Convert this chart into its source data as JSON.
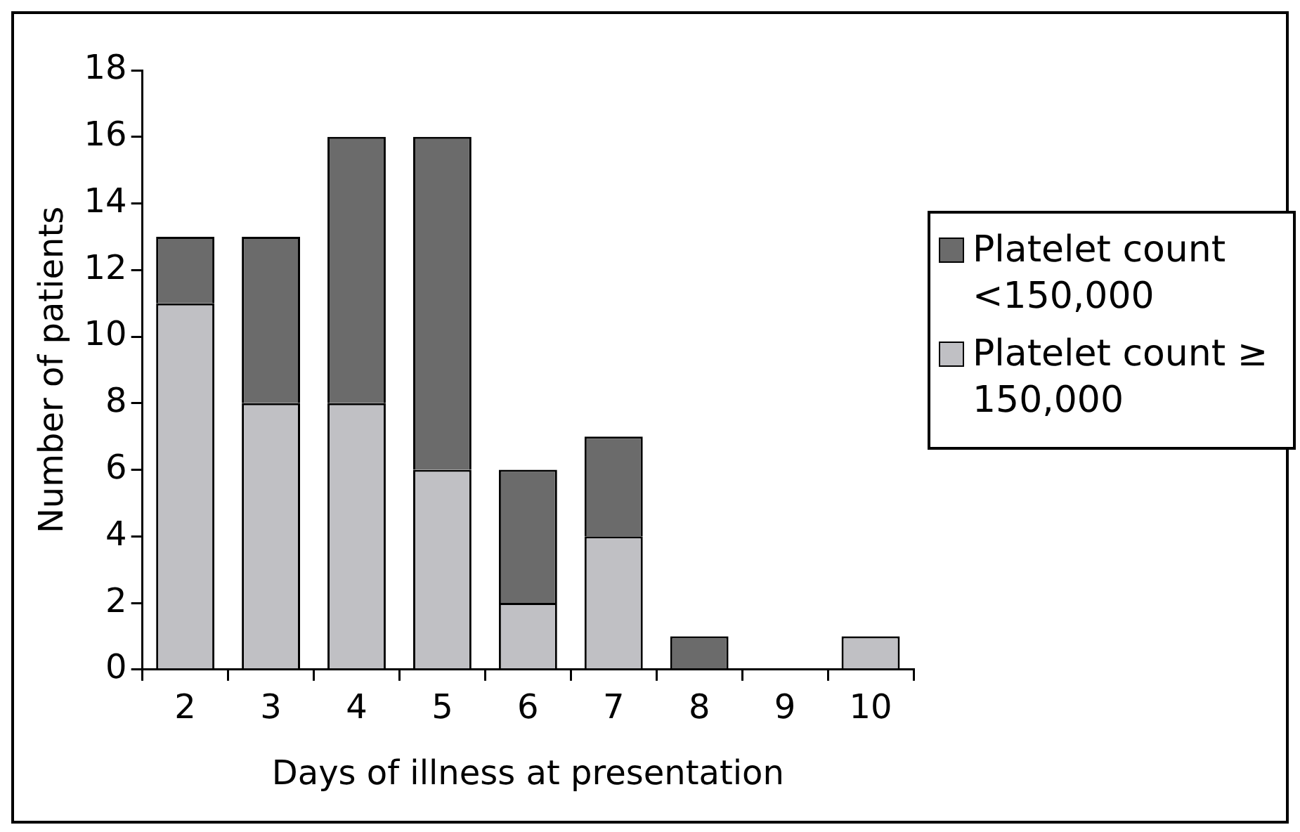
{
  "chart_data": {
    "type": "bar",
    "xlabel": "Days of illness at presentation",
    "ylabel": "Number of patients",
    "categories": [
      "2",
      "3",
      "4",
      "5",
      "6",
      "7",
      "8",
      "9",
      "10"
    ],
    "stacked": true,
    "series": [
      {
        "name": "Platelet count ≥ 150,000",
        "color": "#c0c0c4",
        "values": [
          11,
          8,
          8,
          6,
          2,
          4,
          0,
          0,
          1
        ]
      },
      {
        "name": "Platelet count <150,000",
        "color": "#6b6b6b",
        "values": [
          2,
          5,
          8,
          10,
          4,
          3,
          1,
          0,
          0
        ]
      }
    ],
    "ylim": [
      0,
      18
    ],
    "yticks": [
      0,
      2,
      4,
      6,
      8,
      10,
      12,
      14,
      16,
      18
    ],
    "grid": false,
    "legend": "right"
  }
}
